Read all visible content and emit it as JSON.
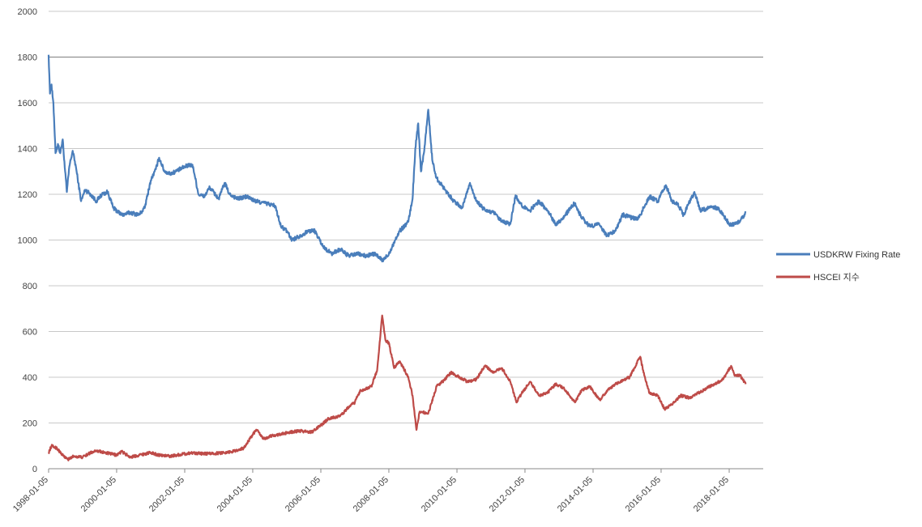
{
  "chart_data": {
    "type": "line",
    "title": "",
    "xlabel": "",
    "ylabel": "",
    "ylim": [
      0,
      2000
    ],
    "xlim": [
      "1998-01-05",
      "2019-01-05"
    ],
    "yticks": [
      0,
      200,
      400,
      600,
      800,
      1000,
      1200,
      1400,
      1600,
      1800,
      2000
    ],
    "xticks": [
      "1998-01-05",
      "2000-01-05",
      "2002-01-05",
      "2004-01-05",
      "2006-01-05",
      "2008-01-05",
      "2010-01-05",
      "2012-01-05",
      "2014-01-05",
      "2016-01-05",
      "2018-01-05"
    ],
    "grid": true,
    "legend_position": "right",
    "series": [
      {
        "name": "USDKRW Fixing Rate",
        "color": "#4a7ebb",
        "points": [
          [
            "1998-01-05",
            1810
          ],
          [
            "1998-01-20",
            1640
          ],
          [
            "1998-02-05",
            1680
          ],
          [
            "1998-02-25",
            1600
          ],
          [
            "1998-03-20",
            1380
          ],
          [
            "1998-04-15",
            1420
          ],
          [
            "1998-05-10",
            1380
          ],
          [
            "1998-06-05",
            1440
          ],
          [
            "1998-07-01",
            1300
          ],
          [
            "1998-07-20",
            1210
          ],
          [
            "1998-08-15",
            1320
          ],
          [
            "1998-09-20",
            1390
          ],
          [
            "1998-10-25",
            1320
          ],
          [
            "1998-11-20",
            1250
          ],
          [
            "1998-12-20",
            1170
          ],
          [
            "1999-02-01",
            1220
          ],
          [
            "1999-04-01",
            1200
          ],
          [
            "1999-06-01",
            1170
          ],
          [
            "1999-08-01",
            1200
          ],
          [
            "1999-10-01",
            1210
          ],
          [
            "1999-12-01",
            1140
          ],
          [
            "2000-03-01",
            1110
          ],
          [
            "2000-06-01",
            1120
          ],
          [
            "2000-09-01",
            1110
          ],
          [
            "2000-11-01",
            1140
          ],
          [
            "2001-01-05",
            1260
          ],
          [
            "2001-03-01",
            1310
          ],
          [
            "2001-04-05",
            1360
          ],
          [
            "2001-06-01",
            1300
          ],
          [
            "2001-08-01",
            1290
          ],
          [
            "2001-10-01",
            1300
          ],
          [
            "2002-01-05",
            1320
          ],
          [
            "2002-03-01",
            1330
          ],
          [
            "2002-04-05",
            1320
          ],
          [
            "2002-06-01",
            1200
          ],
          [
            "2002-08-01",
            1190
          ],
          [
            "2002-10-01",
            1230
          ],
          [
            "2003-01-05",
            1180
          ],
          [
            "2003-03-10",
            1250
          ],
          [
            "2003-05-01",
            1200
          ],
          [
            "2003-08-01",
            1180
          ],
          [
            "2003-11-01",
            1190
          ],
          [
            "2004-02-01",
            1170
          ],
          [
            "2004-06-01",
            1160
          ],
          [
            "2004-09-01",
            1150
          ],
          [
            "2004-11-01",
            1060
          ],
          [
            "2005-01-05",
            1040
          ],
          [
            "2005-03-01",
            1000
          ],
          [
            "2005-06-01",
            1020
          ],
          [
            "2005-09-01",
            1040
          ],
          [
            "2005-11-01",
            1040
          ],
          [
            "2006-02-01",
            970
          ],
          [
            "2006-05-01",
            940
          ],
          [
            "2006-08-01",
            960
          ],
          [
            "2006-11-01",
            930
          ],
          [
            "2007-02-01",
            940
          ],
          [
            "2007-05-01",
            930
          ],
          [
            "2007-08-01",
            940
          ],
          [
            "2007-11-01",
            910
          ],
          [
            "2008-01-05",
            940
          ],
          [
            "2008-03-01",
            990
          ],
          [
            "2008-05-01",
            1040
          ],
          [
            "2008-08-01",
            1080
          ],
          [
            "2008-09-15",
            1180
          ],
          [
            "2008-10-15",
            1400
          ],
          [
            "2008-11-15",
            1510
          ],
          [
            "2008-12-15",
            1300
          ],
          [
            "2009-01-15",
            1380
          ],
          [
            "2009-03-03",
            1570
          ],
          [
            "2009-04-15",
            1350
          ],
          [
            "2009-06-01",
            1270
          ],
          [
            "2009-09-01",
            1220
          ],
          [
            "2009-12-01",
            1170
          ],
          [
            "2010-03-01",
            1140
          ],
          [
            "2010-05-25",
            1250
          ],
          [
            "2010-08-01",
            1170
          ],
          [
            "2010-11-01",
            1130
          ],
          [
            "2011-02-01",
            1120
          ],
          [
            "2011-05-01",
            1080
          ],
          [
            "2011-08-01",
            1070
          ],
          [
            "2011-09-26",
            1195
          ],
          [
            "2011-12-01",
            1150
          ],
          [
            "2012-03-01",
            1130
          ],
          [
            "2012-06-01",
            1170
          ],
          [
            "2012-09-01",
            1130
          ],
          [
            "2012-12-01",
            1070
          ],
          [
            "2013-02-01",
            1090
          ],
          [
            "2013-06-20",
            1160
          ],
          [
            "2013-09-01",
            1100
          ],
          [
            "2013-12-01",
            1060
          ],
          [
            "2014-03-01",
            1070
          ],
          [
            "2014-06-01",
            1020
          ],
          [
            "2014-09-01",
            1040
          ],
          [
            "2014-11-20",
            1110
          ],
          [
            "2015-02-01",
            1100
          ],
          [
            "2015-05-01",
            1090
          ],
          [
            "2015-09-01",
            1190
          ],
          [
            "2015-12-01",
            1170
          ],
          [
            "2016-02-25",
            1240
          ],
          [
            "2016-05-01",
            1170
          ],
          [
            "2016-07-01",
            1160
          ],
          [
            "2016-09-01",
            1110
          ],
          [
            "2016-12-28",
            1210
          ],
          [
            "2017-03-01",
            1130
          ],
          [
            "2017-06-01",
            1140
          ],
          [
            "2017-09-01",
            1140
          ],
          [
            "2017-11-01",
            1110
          ],
          [
            "2018-01-05",
            1070
          ],
          [
            "2018-03-01",
            1070
          ],
          [
            "2018-05-01",
            1080
          ],
          [
            "2018-07-01",
            1120
          ]
        ]
      },
      {
        "name": "HSCEI 지수",
        "color": "#be4b48",
        "points": [
          [
            "1998-01-05",
            70
          ],
          [
            "1998-02-05",
            100
          ],
          [
            "1998-03-05",
            95
          ],
          [
            "1998-04-05",
            90
          ],
          [
            "1998-06-01",
            60
          ],
          [
            "1998-08-01",
            40
          ],
          [
            "1998-10-01",
            55
          ],
          [
            "1999-01-05",
            50
          ],
          [
            "1999-04-01",
            70
          ],
          [
            "1999-06-01",
            80
          ],
          [
            "1999-09-01",
            70
          ],
          [
            "2000-01-05",
            60
          ],
          [
            "2000-03-01",
            75
          ],
          [
            "2000-06-01",
            50
          ],
          [
            "2000-09-01",
            60
          ],
          [
            "2001-01-05",
            70
          ],
          [
            "2001-04-01",
            60
          ],
          [
            "2001-08-01",
            55
          ],
          [
            "2002-01-05",
            65
          ],
          [
            "2002-04-01",
            70
          ],
          [
            "2002-08-01",
            65
          ],
          [
            "2003-01-05",
            68
          ],
          [
            "2003-06-01",
            75
          ],
          [
            "2003-10-01",
            90
          ],
          [
            "2004-01-05",
            150
          ],
          [
            "2004-02-15",
            170
          ],
          [
            "2004-05-01",
            130
          ],
          [
            "2004-08-01",
            145
          ],
          [
            "2004-11-01",
            150
          ],
          [
            "2005-02-01",
            160
          ],
          [
            "2005-06-01",
            165
          ],
          [
            "2005-10-01",
            160
          ],
          [
            "2006-01-05",
            190
          ],
          [
            "2006-04-01",
            220
          ],
          [
            "2006-08-01",
            230
          ],
          [
            "2006-11-01",
            270
          ],
          [
            "2007-01-05",
            290
          ],
          [
            "2007-03-01",
            340
          ],
          [
            "2007-05-01",
            350
          ],
          [
            "2007-07-01",
            360
          ],
          [
            "2007-09-01",
            430
          ],
          [
            "2007-10-25",
            670
          ],
          [
            "2007-12-01",
            560
          ],
          [
            "2008-01-05",
            550
          ],
          [
            "2008-03-01",
            440
          ],
          [
            "2008-05-01",
            470
          ],
          [
            "2008-08-01",
            400
          ],
          [
            "2008-09-15",
            320
          ],
          [
            "2008-10-27",
            170
          ],
          [
            "2008-12-01",
            250
          ],
          [
            "2009-03-01",
            240
          ],
          [
            "2009-06-01",
            360
          ],
          [
            "2009-08-01",
            380
          ],
          [
            "2009-11-01",
            420
          ],
          [
            "2010-02-01",
            400
          ],
          [
            "2010-05-01",
            380
          ],
          [
            "2010-08-01",
            390
          ],
          [
            "2010-11-01",
            450
          ],
          [
            "2011-02-01",
            420
          ],
          [
            "2011-05-01",
            440
          ],
          [
            "2011-08-01",
            380
          ],
          [
            "2011-10-05",
            290
          ],
          [
            "2011-12-01",
            330
          ],
          [
            "2012-03-01",
            380
          ],
          [
            "2012-06-01",
            320
          ],
          [
            "2012-09-01",
            330
          ],
          [
            "2012-12-01",
            370
          ],
          [
            "2013-03-01",
            350
          ],
          [
            "2013-06-25",
            290
          ],
          [
            "2013-09-01",
            340
          ],
          [
            "2013-12-01",
            360
          ],
          [
            "2014-03-20",
            300
          ],
          [
            "2014-06-01",
            340
          ],
          [
            "2014-09-01",
            370
          ],
          [
            "2014-12-01",
            390
          ],
          [
            "2015-02-01",
            400
          ],
          [
            "2015-05-26",
            490
          ],
          [
            "2015-07-01",
            420
          ],
          [
            "2015-09-01",
            330
          ],
          [
            "2015-12-01",
            320
          ],
          [
            "2016-02-12",
            260
          ],
          [
            "2016-05-01",
            280
          ],
          [
            "2016-08-01",
            320
          ],
          [
            "2016-11-01",
            310
          ],
          [
            "2017-02-01",
            330
          ],
          [
            "2017-05-01",
            350
          ],
          [
            "2017-08-01",
            370
          ],
          [
            "2017-11-01",
            390
          ],
          [
            "2018-01-26",
            450
          ],
          [
            "2018-03-01",
            410
          ],
          [
            "2018-05-01",
            410
          ],
          [
            "2018-07-01",
            370
          ]
        ]
      }
    ]
  }
}
